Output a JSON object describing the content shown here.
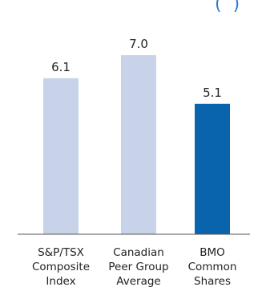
{
  "chart_data": {
    "type": "bar",
    "title": "",
    "xlabel": "",
    "ylabel": "",
    "categories": [
      [
        "S&P/TSX",
        "Composite",
        "Index"
      ],
      [
        "Canadian",
        "Peer Group",
        "Average"
      ],
      [
        "BMO",
        "Common",
        "Shares"
      ]
    ],
    "values": [
      6.1,
      7.0,
      5.1
    ],
    "value_labels": [
      "6.1",
      "7.0",
      "5.1"
    ],
    "ylim": [
      0,
      7.5
    ],
    "grid": false,
    "legend": "none",
    "colors": [
      "#c8d3ea",
      "#c8d3ea",
      "#0a63ad"
    ],
    "corner_mark": "(  )"
  }
}
